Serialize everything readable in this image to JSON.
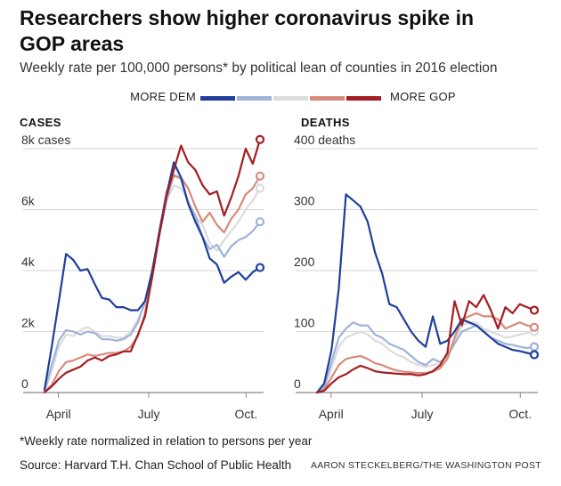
{
  "title": "Researchers show higher coronavirus spike in GOP areas",
  "subtitle": "Weekly rate per 100,000 persons* by political lean of counties in 2016 election",
  "legend": {
    "left_label": "MORE DEM",
    "right_label": "MORE GOP",
    "colors": [
      "#1f3f99",
      "#9fb3d9",
      "#dcdcdc",
      "#d98a7c",
      "#a31e22"
    ]
  },
  "footnote": "*Weekly rate normalized in relation to persons per year",
  "source": "Source: Harvard T.H. Chan School of Public Health",
  "credit": "AARON STECKELBERG/THE WASHINGTON POST",
  "chart_data": [
    {
      "type": "line",
      "title": "CASES",
      "x_ticks": [
        "April",
        "July",
        "Oct."
      ],
      "x_tick_weeks": [
        2,
        15,
        29
      ],
      "y_ticks": [
        0,
        2000,
        4000,
        6000,
        8000
      ],
      "y_tick_labels": [
        "0",
        "2k",
        "4k",
        "6k",
        "8k cases"
      ],
      "ylim": [
        0,
        8000
      ],
      "weeks": [
        0,
        31
      ],
      "series": [
        {
          "color": "#1f3f99",
          "values": [
            100,
            1500,
            3000,
            4550,
            4350,
            4000,
            4050,
            3550,
            3100,
            3050,
            2800,
            2800,
            2700,
            2700,
            3000,
            4000,
            5300,
            6500,
            7550,
            7050,
            6200,
            5600,
            5100,
            4400,
            4200,
            3600,
            3800,
            3950,
            3700,
            3950,
            4100
          ]
        },
        {
          "color": "#9fb3d9",
          "values": [
            50,
            900,
            1700,
            2050,
            2000,
            1900,
            2000,
            1950,
            1750,
            1750,
            1700,
            1750,
            1900,
            2300,
            3000,
            4000,
            5200,
            6300,
            7150,
            7000,
            6200,
            5800,
            5100,
            4700,
            4850,
            4450,
            4800,
            5000,
            5100,
            5300,
            5600
          ]
        },
        {
          "color": "#dcdcdc",
          "values": [
            30,
            700,
            1500,
            1900,
            1850,
            2050,
            2150,
            2000,
            1850,
            1850,
            1800,
            1800,
            2000,
            2400,
            2900,
            3850,
            5200,
            6300,
            6800,
            6700,
            6300,
            5800,
            5500,
            4900,
            4650,
            5000,
            5300,
            5600,
            6000,
            6300,
            6700
          ]
        },
        {
          "color": "#d98a7c",
          "values": [
            20,
            250,
            700,
            1000,
            1050,
            1150,
            1250,
            1200,
            1250,
            1300,
            1300,
            1350,
            1500,
            1850,
            2600,
            3900,
            5300,
            6600,
            7100,
            7050,
            6700,
            6100,
            5600,
            5900,
            5500,
            5250,
            5700,
            6000,
            6500,
            6700,
            7100
          ]
        },
        {
          "color": "#a31e22",
          "values": [
            10,
            200,
            450,
            650,
            750,
            850,
            1050,
            1150,
            1050,
            1200,
            1250,
            1350,
            1350,
            1900,
            2500,
            3800,
            5200,
            6450,
            7300,
            8100,
            7550,
            7300,
            6800,
            6500,
            6600,
            5800,
            6400,
            7100,
            8000,
            7500,
            8300
          ]
        }
      ]
    },
    {
      "type": "line",
      "title": "DEATHS",
      "x_ticks": [
        "April",
        "July",
        "Oct."
      ],
      "x_tick_weeks": [
        2,
        15,
        29
      ],
      "y_ticks": [
        0,
        100,
        200,
        300,
        400
      ],
      "y_tick_labels": [
        "0",
        "100",
        "200",
        "300",
        "400 deaths"
      ],
      "ylim": [
        0,
        400
      ],
      "weeks": [
        0,
        31
      ],
      "series": [
        {
          "color": "#1f3f99",
          "values": [
            0,
            15,
            70,
            170,
            325,
            315,
            305,
            280,
            230,
            195,
            145,
            140,
            120,
            100,
            85,
            75,
            125,
            80,
            85,
            100,
            120,
            115,
            110,
            100,
            90,
            80,
            75,
            70,
            68,
            65,
            62
          ]
        },
        {
          "color": "#9fb3d9",
          "values": [
            0,
            10,
            50,
            90,
            105,
            115,
            110,
            110,
            95,
            90,
            80,
            75,
            70,
            60,
            50,
            45,
            55,
            50,
            60,
            80,
            100,
            105,
            110,
            100,
            90,
            85,
            80,
            78,
            75,
            73,
            75
          ]
        },
        {
          "color": "#dcdcdc",
          "values": [
            0,
            8,
            40,
            75,
            90,
            95,
            100,
            95,
            85,
            80,
            70,
            62,
            58,
            50,
            45,
            42,
            45,
            48,
            60,
            85,
            110,
            115,
            115,
            105,
            100,
            95,
            90,
            92,
            95,
            98,
            100
          ]
        },
        {
          "color": "#d98a7c",
          "values": [
            0,
            5,
            25,
            45,
            55,
            58,
            60,
            55,
            48,
            45,
            40,
            36,
            34,
            33,
            32,
            32,
            34,
            40,
            55,
            90,
            120,
            125,
            130,
            125,
            125,
            120,
            105,
            110,
            115,
            110,
            107
          ]
        },
        {
          "color": "#a31e22",
          "values": [
            0,
            3,
            15,
            25,
            30,
            38,
            44,
            40,
            35,
            33,
            32,
            31,
            30,
            30,
            28,
            30,
            35,
            45,
            65,
            150,
            110,
            150,
            140,
            160,
            135,
            105,
            140,
            130,
            145,
            140,
            135
          ]
        }
      ]
    }
  ]
}
